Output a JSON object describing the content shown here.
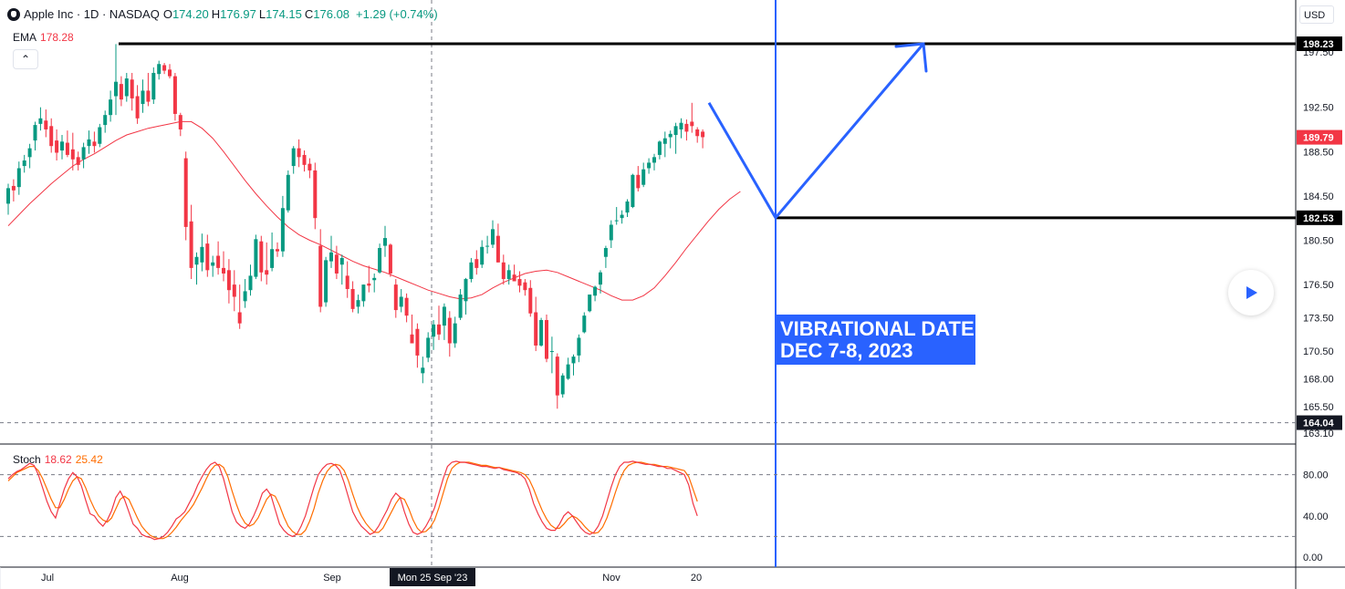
{
  "header": {
    "symbol_title": "Apple Inc · 1D · NASDAQ",
    "ohlc": [
      {
        "k": "O",
        "v": "174.20"
      },
      {
        "k": "H",
        "v": "176.97"
      },
      {
        "k": "L",
        "v": "174.15"
      },
      {
        "k": "C",
        "v": "176.08"
      }
    ],
    "change": "+1.29 (+0.74%)",
    "ema_label": "EMA",
    "ema_value": "178.28",
    "collapse_glyph": "⌃",
    "currency": "USD"
  },
  "stoch": {
    "label": "Stoch",
    "k_value": "18.62",
    "d_value": "25.42"
  },
  "annotation": {
    "line1": "VIBRATIONAL DATE",
    "line2": "DEC 7-8, 2023"
  },
  "colors": {
    "up": "#089981",
    "down": "#f23645",
    "ema": "#f23645",
    "stoch_k": "#f23645",
    "stoch_d": "#ff6d00",
    "drawing": "#2962ff",
    "level": "#000000"
  },
  "price_axis": {
    "ticks": [
      "197.50",
      "192.50",
      "188.50",
      "184.50",
      "180.50",
      "176.50",
      "173.50",
      "170.50",
      "168.00",
      "165.50",
      "163.10"
    ],
    "badges": [
      {
        "label": "198.23",
        "style": "level"
      },
      {
        "label": "189.79",
        "style": "last"
      },
      {
        "label": "182.53",
        "style": "level"
      },
      {
        "label": "164.04",
        "style": "dark"
      }
    ]
  },
  "stoch_axis": {
    "ticks": [
      "80.00",
      "40.00",
      "0.00"
    ],
    "levels": [
      80,
      20
    ]
  },
  "time_axis": {
    "labels": [
      "Jul",
      "Aug",
      "Sep",
      "Nov",
      "20"
    ],
    "crosshair_label": "Mon 25 Sep '23"
  },
  "play_icon": "play-icon",
  "chart_data": {
    "type": "candlestick",
    "title": "Apple Inc · 1D · NASDAQ",
    "candles": [
      [
        183.8,
        185.6,
        182.8,
        185.2
      ],
      [
        185.4,
        186.0,
        184.0,
        185.0
      ],
      [
        185.3,
        187.6,
        184.6,
        187.0
      ],
      [
        187.2,
        188.2,
        186.6,
        187.7
      ],
      [
        188.0,
        189.2,
        187.0,
        188.8
      ],
      [
        189.5,
        191.2,
        188.6,
        190.9
      ],
      [
        191.0,
        192.5,
        190.4,
        191.5
      ],
      [
        191.3,
        192.3,
        189.8,
        190.5
      ],
      [
        190.8,
        191.5,
        188.4,
        189.0
      ],
      [
        189.5,
        190.5,
        187.7,
        188.4
      ],
      [
        188.6,
        190.0,
        187.8,
        189.4
      ],
      [
        189.3,
        190.4,
        188.0,
        188.2
      ],
      [
        188.7,
        190.2,
        186.8,
        187.8
      ],
      [
        188.0,
        188.5,
        186.8,
        187.3
      ],
      [
        187.8,
        189.3,
        187.0,
        188.9
      ],
      [
        189.0,
        190.4,
        188.3,
        189.6
      ],
      [
        189.4,
        190.3,
        188.4,
        189.0
      ],
      [
        189.2,
        191.0,
        188.9,
        190.7
      ],
      [
        190.9,
        192.2,
        190.2,
        191.8
      ],
      [
        191.8,
        194.0,
        191.2,
        193.2
      ],
      [
        193.5,
        198.2,
        191.8,
        194.8
      ],
      [
        194.6,
        195.3,
        192.6,
        193.2
      ],
      [
        193.5,
        195.6,
        193.0,
        195.1
      ],
      [
        195.0,
        195.6,
        192.2,
        193.3
      ],
      [
        193.5,
        194.5,
        191.0,
        191.5
      ],
      [
        192.8,
        195.0,
        192.0,
        194.0
      ],
      [
        194.0,
        195.6,
        192.6,
        193.0
      ],
      [
        193.2,
        196.1,
        192.8,
        195.6
      ],
      [
        195.5,
        196.7,
        195.0,
        196.4
      ],
      [
        196.3,
        196.5,
        195.5,
        195.8
      ],
      [
        195.9,
        196.4,
        195.1,
        195.3
      ],
      [
        195.3,
        195.6,
        191.3,
        191.9
      ],
      [
        191.8,
        192.0,
        189.9,
        190.5
      ],
      [
        187.9,
        188.5,
        180.5,
        181.7
      ],
      [
        182.2,
        183.7,
        177.0,
        178.0
      ],
      [
        178.3,
        179.4,
        176.5,
        179.0
      ],
      [
        178.5,
        181.1,
        177.7,
        179.9
      ],
      [
        180.2,
        181.0,
        177.2,
        177.8
      ],
      [
        178.2,
        179.1,
        177.2,
        178.5
      ],
      [
        179.1,
        180.4,
        177.4,
        178.0
      ],
      [
        178.0,
        179.5,
        176.8,
        177.5
      ],
      [
        177.8,
        178.8,
        174.8,
        176.0
      ],
      [
        176.5,
        177.8,
        174.1,
        175.4
      ],
      [
        174.0,
        176.5,
        172.5,
        173.0
      ],
      [
        175.0,
        177.0,
        174.4,
        175.9
      ],
      [
        176.0,
        178.3,
        175.5,
        177.3
      ],
      [
        177.2,
        181.0,
        177.0,
        180.6
      ],
      [
        180.4,
        180.9,
        176.8,
        177.6
      ],
      [
        177.8,
        180.3,
        176.5,
        177.4
      ],
      [
        178.0,
        181.2,
        177.7,
        179.7
      ],
      [
        179.7,
        180.3,
        179.0,
        179.5
      ],
      [
        179.5,
        184.5,
        179.0,
        183.4
      ],
      [
        183.2,
        186.8,
        183.0,
        186.4
      ],
      [
        187.2,
        189.0,
        186.5,
        188.8
      ],
      [
        188.8,
        189.6,
        187.1,
        188.0
      ],
      [
        188.2,
        188.6,
        186.7,
        187.3
      ],
      [
        187.4,
        187.9,
        186.1,
        186.8
      ],
      [
        186.8,
        187.5,
        181.5,
        182.5
      ],
      [
        180.0,
        181.5,
        174.0,
        174.5
      ],
      [
        174.9,
        179.0,
        174.5,
        178.7
      ],
      [
        178.6,
        180.9,
        178.0,
        179.4
      ],
      [
        179.2,
        180.0,
        177.0,
        177.5
      ],
      [
        178.3,
        179.2,
        176.5,
        178.9
      ],
      [
        177.3,
        178.6,
        175.3,
        176.1
      ],
      [
        176.1,
        176.8,
        174.0,
        174.3
      ],
      [
        174.5,
        175.6,
        173.9,
        175.1
      ],
      [
        175.0,
        176.5,
        174.5,
        176.5
      ],
      [
        176.6,
        178.2,
        175.8,
        176.4
      ],
      [
        176.9,
        177.5,
        175.8,
        177.1
      ],
      [
        177.6,
        180.2,
        177.5,
        179.8
      ],
      [
        180.0,
        181.8,
        179.0,
        180.7
      ],
      [
        180.1,
        180.2,
        177.2,
        177.5
      ],
      [
        176.5,
        177.0,
        173.5,
        174.2
      ],
      [
        174.5,
        176.1,
        174.0,
        175.4
      ],
      [
        175.3,
        175.7,
        173.1,
        173.7
      ],
      [
        172.0,
        173.8,
        171.5,
        171.2
      ],
      [
        172.5,
        173.0,
        169.0,
        170.1
      ],
      [
        168.5,
        170.0,
        167.6,
        169.0
      ],
      [
        169.9,
        172.2,
        169.5,
        171.7
      ],
      [
        171.8,
        173.3,
        170.6,
        172.9
      ],
      [
        172.9,
        174.6,
        171.5,
        172.0
      ],
      [
        172.8,
        174.8,
        171.5,
        174.5
      ],
      [
        173.5,
        174.1,
        170.0,
        171.2
      ],
      [
        171.2,
        173.6,
        170.8,
        173.0
      ],
      [
        173.5,
        176.1,
        173.3,
        175.6
      ],
      [
        175.0,
        177.1,
        173.8,
        177.0
      ],
      [
        177.0,
        178.9,
        176.7,
        178.5
      ],
      [
        178.8,
        179.6,
        177.4,
        178.0
      ],
      [
        178.3,
        180.5,
        178.0,
        179.9
      ],
      [
        180.0,
        180.9,
        179.3,
        180.0
      ],
      [
        180.1,
        182.3,
        179.8,
        181.5
      ],
      [
        180.9,
        182.0,
        178.5,
        178.5
      ],
      [
        178.5,
        179.2,
        176.5,
        177.0
      ],
      [
        177.0,
        178.3,
        176.5,
        177.8
      ],
      [
        177.4,
        178.3,
        177.0,
        176.8
      ],
      [
        177.0,
        177.7,
        175.8,
        176.4
      ],
      [
        176.7,
        177.0,
        175.5,
        176.0
      ],
      [
        176.2,
        176.9,
        173.6,
        173.9
      ],
      [
        174.0,
        175.4,
        170.5,
        171.0
      ],
      [
        171.0,
        173.5,
        170.9,
        173.3
      ],
      [
        173.3,
        173.8,
        169.5,
        169.8
      ],
      [
        170.5,
        171.8,
        168.5,
        170.5
      ],
      [
        170.0,
        170.3,
        165.3,
        166.5
      ],
      [
        166.6,
        168.5,
        166.3,
        168.3
      ],
      [
        168.0,
        169.9,
        167.9,
        169.3
      ],
      [
        169.4,
        170.2,
        168.3,
        170.0
      ],
      [
        170.1,
        172.0,
        169.5,
        171.7
      ],
      [
        172.2,
        174.0,
        172.1,
        173.7
      ],
      [
        174.1,
        175.6,
        174.0,
        175.6
      ],
      [
        175.5,
        176.4,
        175.0,
        176.3
      ],
      [
        176.5,
        177.8,
        175.7,
        177.6
      ],
      [
        179.0,
        180.0,
        178.0,
        179.8
      ],
      [
        180.5,
        182.3,
        179.8,
        181.9
      ],
      [
        182.3,
        183.5,
        181.9,
        182.3
      ],
      [
        182.5,
        183.2,
        182.0,
        182.8
      ],
      [
        183.0,
        184.2,
        182.6,
        184.0
      ],
      [
        183.5,
        186.5,
        183.4,
        186.4
      ],
      [
        186.4,
        187.2,
        184.9,
        185.2
      ],
      [
        185.5,
        187.5,
        185.3,
        186.9
      ],
      [
        187.0,
        187.9,
        186.5,
        187.5
      ],
      [
        187.5,
        188.3,
        186.8,
        188.0
      ],
      [
        188.2,
        189.5,
        187.8,
        189.4
      ],
      [
        189.2,
        190.3,
        188.0,
        189.7
      ],
      [
        189.8,
        190.4,
        188.8,
        190.1
      ],
      [
        190.0,
        191.1,
        188.3,
        190.8
      ],
      [
        190.5,
        191.5,
        189.7,
        191.1
      ],
      [
        191.0,
        191.4,
        189.5,
        190.3
      ],
      [
        191.2,
        192.9,
        190.2,
        190.8
      ],
      [
        190.5,
        190.7,
        189.3,
        189.9
      ],
      [
        190.3,
        190.5,
        188.8,
        189.8
      ]
    ],
    "ema": {
      "period_label": "EMA",
      "last": 178.28,
      "values": [
        181.8,
        182.8,
        183.8,
        184.7,
        185.6,
        186.4,
        187.2,
        187.8,
        188.3,
        188.9,
        189.5,
        190.0,
        190.3,
        190.6,
        190.8,
        191.0,
        191.2,
        191.2,
        190.6,
        189.7,
        188.5,
        187.2,
        185.9,
        184.7,
        183.6,
        182.6,
        181.7,
        181.0,
        180.5,
        180.1,
        179.6,
        179.1,
        178.6,
        178.2,
        177.9,
        177.6,
        177.2,
        176.8,
        176.4,
        176.0,
        175.7,
        175.4,
        175.2,
        175.3,
        175.6,
        176.2,
        176.7,
        177.1,
        177.5,
        177.7,
        177.8,
        177.6,
        177.2,
        176.8,
        176.4,
        176.0,
        175.5,
        175.1,
        175.1,
        175.5,
        176.2,
        177.3,
        178.5,
        179.8,
        181.0,
        182.2,
        183.3,
        184.2,
        184.9
      ]
    },
    "stoch": {
      "k": [
        76,
        80,
        83,
        85,
        88,
        91,
        89,
        80,
        67,
        54,
        44,
        38,
        52,
        66,
        76,
        82,
        78,
        69,
        55,
        42,
        40,
        34,
        30,
        36,
        45,
        58,
        64,
        56,
        44,
        32,
        28,
        22,
        20,
        19,
        17,
        18,
        20,
        24,
        30,
        37,
        40,
        44,
        52,
        60,
        70,
        78,
        85,
        90,
        92,
        88,
        76,
        60,
        44,
        34,
        30,
        28,
        32,
        40,
        50,
        62,
        66,
        60,
        46,
        32,
        26,
        22,
        20,
        22,
        30,
        40,
        54,
        68,
        80,
        86,
        90,
        91,
        89,
        84,
        72,
        58,
        44,
        36,
        30,
        26,
        22,
        24,
        30,
        38,
        46,
        56,
        62,
        58,
        44,
        32,
        24,
        22,
        24,
        30,
        38,
        48,
        62,
        76,
        88,
        92,
        93,
        92,
        92,
        91,
        90,
        89,
        88,
        88,
        87,
        86,
        87,
        85,
        84,
        83,
        82,
        80,
        76,
        66,
        52,
        42,
        34,
        28,
        26,
        26,
        32,
        40,
        44,
        40,
        34,
        28,
        24,
        22,
        24,
        30,
        40,
        54,
        68,
        80,
        88,
        92,
        92,
        93,
        92,
        91,
        90,
        90,
        89,
        88,
        88,
        86,
        86,
        84,
        82,
        80,
        70,
        52,
        40
      ],
      "d": [
        74,
        78,
        82,
        84,
        86,
        88,
        88,
        84,
        76,
        66,
        56,
        48,
        48,
        56,
        66,
        74,
        78,
        76,
        67,
        56,
        47,
        40,
        36,
        34,
        38,
        47,
        56,
        59,
        56,
        47,
        38,
        30,
        25,
        21,
        19,
        18,
        18,
        20,
        24,
        29,
        35,
        40,
        45,
        51,
        59,
        67,
        76,
        84,
        89,
        90,
        87,
        78,
        64,
        51,
        40,
        33,
        30,
        32,
        38,
        47,
        56,
        61,
        59,
        50,
        39,
        30,
        25,
        22,
        22,
        26,
        35,
        47,
        62,
        74,
        83,
        88,
        90,
        89,
        84,
        74,
        61,
        49,
        40,
        33,
        28,
        24,
        24,
        28,
        36,
        44,
        52,
        58,
        56,
        47,
        36,
        28,
        24,
        25,
        29,
        36,
        48,
        62,
        76,
        86,
        90,
        92,
        92,
        92,
        91,
        90,
        89,
        89,
        88,
        87,
        87,
        86,
        85,
        84,
        83,
        82,
        80,
        75,
        66,
        55,
        45,
        37,
        31,
        28,
        28,
        32,
        37,
        40,
        38,
        34,
        29,
        25,
        23,
        24,
        29,
        38,
        50,
        63,
        75,
        84,
        89,
        91,
        92,
        92,
        91,
        90,
        90,
        89,
        88,
        88,
        87,
        86,
        85,
        84,
        78,
        66,
        54
      ]
    },
    "levels": [
      198.23,
      182.53,
      164.04
    ],
    "last_price": 189.79,
    "projection": {
      "from_price": 192.9,
      "low_price": 182.53,
      "high_price": 198.23
    },
    "ylim": [
      163.1,
      198.23
    ],
    "stoch_ylim": [
      0,
      100
    ]
  }
}
